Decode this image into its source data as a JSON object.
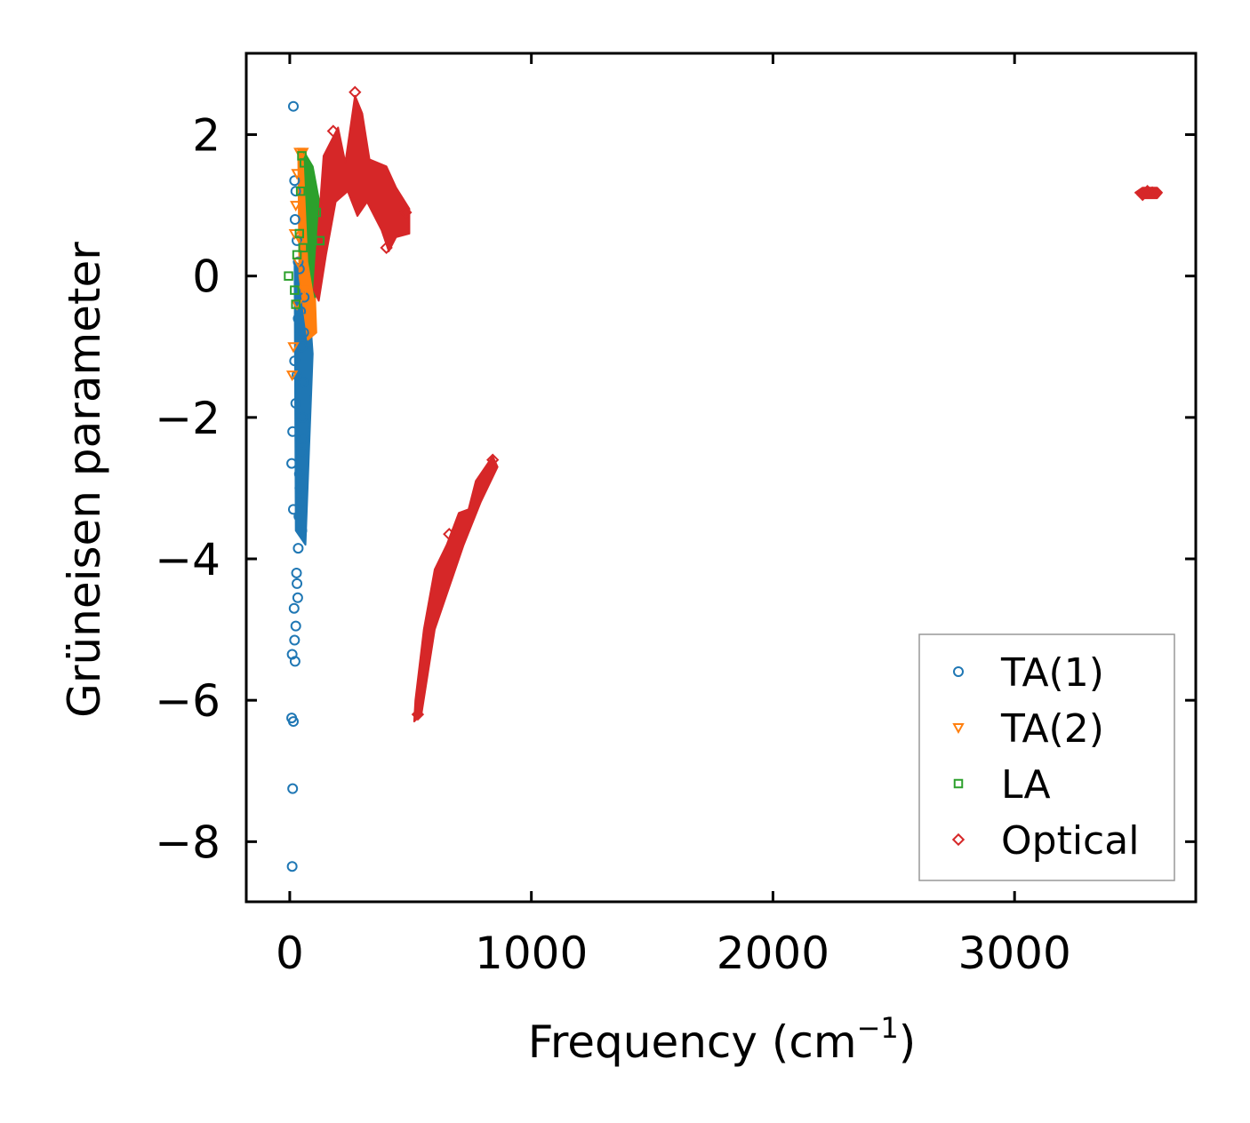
{
  "chart_data": {
    "type": "scatter",
    "title": "",
    "xlabel": "Frequency (cm",
    "xlabel_sup": "−1",
    "xlabel_close": ")",
    "ylabel": "Grüneisen parameter",
    "xlim": [
      -180,
      3750
    ],
    "ylim": [
      -8.85,
      3.15
    ],
    "xticks": [
      0,
      1000,
      2000,
      3000
    ],
    "xtick_labels": [
      "0",
      "1000",
      "2000",
      "3000"
    ],
    "yticks": [
      -8,
      -6,
      -4,
      -2,
      0,
      2
    ],
    "ytick_labels": [
      "−8",
      "−6",
      "−4",
      "−2",
      "0",
      "2"
    ],
    "grid": false,
    "legend_position": "bottom-right",
    "series": [
      {
        "name": "TA(1)",
        "marker": "circle",
        "color": "#1f77b4",
        "points": [
          [
            15,
            2.4
          ],
          [
            20,
            1.35
          ],
          [
            25,
            1.2
          ],
          [
            22,
            0.8
          ],
          [
            30,
            0.5
          ],
          [
            35,
            0.2
          ],
          [
            40,
            0.1
          ],
          [
            8,
            -2.65
          ],
          [
            12,
            -2.2
          ],
          [
            15,
            -3.3
          ],
          [
            18,
            -4.7
          ],
          [
            20,
            -5.15
          ],
          [
            25,
            -4.95
          ],
          [
            22,
            -5.45
          ],
          [
            10,
            -5.35
          ],
          [
            8,
            -6.25
          ],
          [
            15,
            -6.3
          ],
          [
            12,
            -7.25
          ],
          [
            10,
            -8.35
          ],
          [
            28,
            -4.2
          ],
          [
            30,
            -4.35
          ],
          [
            35,
            -3.85
          ],
          [
            38,
            -3.4
          ],
          [
            25,
            -1.8
          ],
          [
            20,
            -1.2
          ],
          [
            45,
            -0.5
          ],
          [
            50,
            -1.0
          ],
          [
            55,
            -1.5
          ],
          [
            48,
            -2.5
          ],
          [
            42,
            -3.0
          ],
          [
            52,
            -2.0
          ],
          [
            58,
            -0.8
          ],
          [
            60,
            -0.3
          ],
          [
            35,
            -0.6
          ],
          [
            30,
            -1.4
          ],
          [
            40,
            -2.8
          ],
          [
            50,
            -3.6
          ],
          [
            33,
            -4.55
          ],
          [
            45,
            -3.2
          ],
          [
            55,
            -2.3
          ]
        ],
        "bands": [
          [
            [
              20,
              0.2
            ],
            [
              70,
              0.1
            ],
            [
              95,
              -1.1
            ],
            [
              65,
              -3.8
            ],
            [
              25,
              -3.6
            ]
          ]
        ]
      },
      {
        "name": "TA(2)",
        "marker": "triangle",
        "color": "#ff7f0e",
        "points": [
          [
            40,
            1.75
          ],
          [
            55,
            1.75
          ],
          [
            30,
            1.45
          ],
          [
            25,
            1.0
          ],
          [
            20,
            0.6
          ],
          [
            45,
            0.5
          ],
          [
            35,
            0.2
          ],
          [
            10,
            -1.4
          ],
          [
            15,
            -1.0
          ],
          [
            30,
            -0.4
          ],
          [
            60,
            -0.2
          ],
          [
            80,
            -0.6
          ]
        ],
        "bands": [
          [
            [
              35,
              1.8
            ],
            [
              65,
              1.8
            ],
            [
              95,
              0.6
            ],
            [
              110,
              -0.8
            ],
            [
              75,
              -0.9
            ],
            [
              40,
              0.0
            ]
          ]
        ]
      },
      {
        "name": "LA",
        "marker": "square",
        "color": "#2ca02c",
        "points": [
          [
            50,
            1.7
          ],
          [
            60,
            1.6
          ],
          [
            45,
            1.2
          ],
          [
            40,
            0.6
          ],
          [
            30,
            0.3
          ],
          [
            55,
            0.4
          ],
          [
            -5,
            0.0
          ],
          [
            25,
            -0.4
          ],
          [
            20,
            -0.2
          ],
          [
            110,
            0.9
          ],
          [
            125,
            0.5
          ]
        ],
        "bands": [
          [
            [
              60,
              1.75
            ],
            [
              95,
              1.55
            ],
            [
              125,
              1.0
            ],
            [
              135,
              0.2
            ],
            [
              105,
              -0.3
            ],
            [
              80,
              0.2
            ]
          ]
        ]
      },
      {
        "name": "Optical",
        "marker": "diamond",
        "color": "#d62728",
        "points": [
          [
            660,
            -3.65
          ],
          [
            530,
            -6.2
          ],
          [
            840,
            -2.6
          ],
          [
            3550,
            1.2
          ],
          [
            3530,
            1.15
          ],
          [
            3570,
            1.18
          ],
          [
            270,
            2.6
          ],
          [
            180,
            2.05
          ],
          [
            480,
            0.9
          ],
          [
            400,
            0.4
          ]
        ],
        "bands": [
          [
            [
              100,
              -0.2
            ],
            [
              140,
              1.7
            ],
            [
              200,
              2.1
            ],
            [
              230,
              1.6
            ],
            [
              270,
              2.55
            ],
            [
              300,
              2.3
            ],
            [
              330,
              1.65
            ],
            [
              400,
              1.55
            ],
            [
              440,
              1.25
            ],
            [
              495,
              0.95
            ],
            [
              495,
              0.6
            ],
            [
              440,
              0.55
            ],
            [
              410,
              0.35
            ],
            [
              380,
              0.65
            ],
            [
              320,
              1.05
            ],
            [
              280,
              0.85
            ],
            [
              240,
              1.2
            ],
            [
              190,
              1.05
            ],
            [
              150,
              0.3
            ],
            [
              120,
              -0.35
            ]
          ],
          [
            [
              515,
              -6.3
            ],
            [
              545,
              -6.2
            ],
            [
              600,
              -5.0
            ],
            [
              660,
              -4.4
            ],
            [
              720,
              -3.8
            ],
            [
              790,
              -3.2
            ],
            [
              860,
              -2.7
            ],
            [
              840,
              -2.55
            ],
            [
              770,
              -2.9
            ],
            [
              740,
              -3.3
            ],
            [
              700,
              -3.35
            ],
            [
              650,
              -3.8
            ],
            [
              600,
              -4.15
            ],
            [
              555,
              -5.0
            ],
            [
              520,
              -6.0
            ]
          ],
          [
            [
              3500,
              1.18
            ],
            [
              3530,
              1.25
            ],
            [
              3590,
              1.25
            ],
            [
              3610,
              1.18
            ],
            [
              3590,
              1.1
            ],
            [
              3530,
              1.1
            ]
          ]
        ]
      }
    ]
  }
}
